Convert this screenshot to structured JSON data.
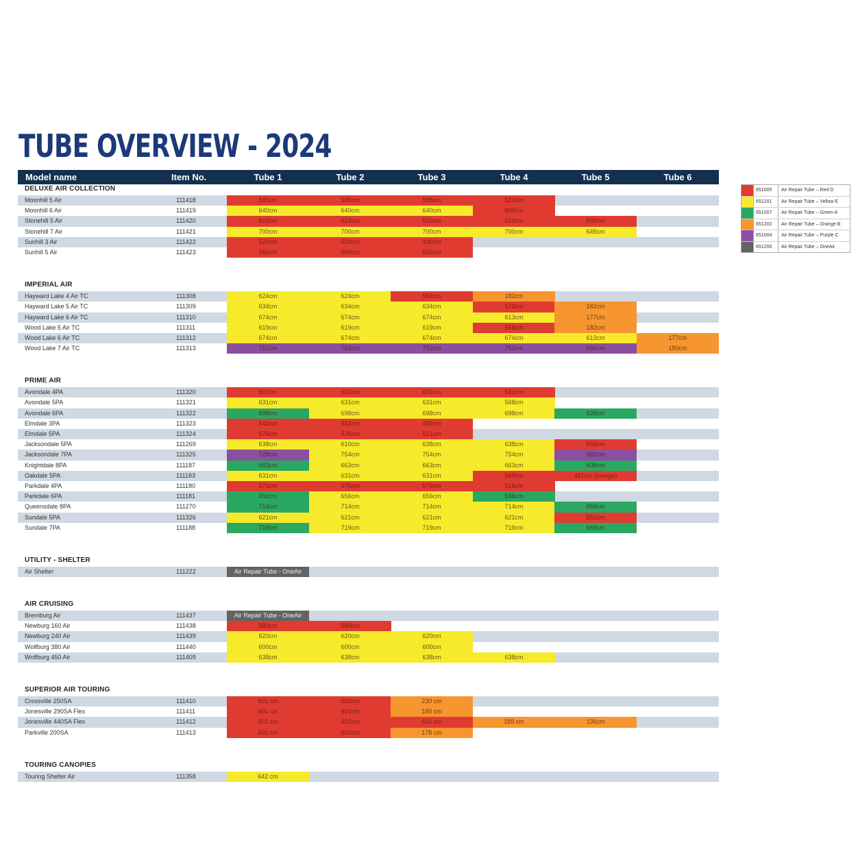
{
  "title": "TUBE OVERVIEW - 2024",
  "colors": {
    "red": "#e03b31",
    "yellow": "#f6ea2b",
    "green": "#2aa862",
    "orange": "#f7952f",
    "purple": "#8c4ea0",
    "oneair": "#636363"
  },
  "header": {
    "model": "Model name",
    "item": "Item No.",
    "tubes": [
      "Tube 1",
      "Tube 2",
      "Tube 3",
      "Tube 4",
      "Tube 5",
      "Tube 6"
    ]
  },
  "legend": [
    {
      "color": "red",
      "code": "651005",
      "label": "Air Repair Tube – Red D"
    },
    {
      "color": "yellow",
      "code": "651201",
      "label": "Air Repair Tube – Yellow E"
    },
    {
      "color": "green",
      "code": "651007",
      "label": "Air Repair Tube – Green A"
    },
    {
      "color": "orange",
      "code": "651202",
      "label": "Air Repair Tube – Orange B"
    },
    {
      "color": "purple",
      "code": "651004",
      "label": "Air Repair Tube – Purple C"
    },
    {
      "color": "oneair",
      "code": "651200",
      "label": "Air Repair Tube – OneAir"
    }
  ],
  "sections": [
    {
      "title": "DELUXE AIR COLLECTION",
      "rows": [
        {
          "name": "Moonhill 5 Air",
          "item": "111418",
          "tubes": [
            [
              "585cm",
              "red"
            ],
            [
              "585cm",
              "red"
            ],
            [
              "585cm",
              "red"
            ],
            [
              "520cm",
              "red"
            ]
          ]
        },
        {
          "name": "Moonhill 6 Air",
          "item": "111419",
          "tubes": [
            [
              "640cm",
              "yellow"
            ],
            [
              "640cm",
              "yellow"
            ],
            [
              "640cm",
              "yellow"
            ],
            [
              "600cm",
              "red"
            ]
          ]
        },
        {
          "name": "Stonehill 5 Air",
          "item": "111420",
          "tubes": [
            [
              "610cm",
              "red"
            ],
            [
              "610cm",
              "red"
            ],
            [
              "610cm",
              "red"
            ],
            [
              "610cm",
              "red"
            ],
            [
              "550cm",
              "red"
            ]
          ]
        },
        {
          "name": "Stonehill 7 Air",
          "item": "111421",
          "tubes": [
            [
              "700cm",
              "yellow"
            ],
            [
              "700cm",
              "yellow"
            ],
            [
              "700cm",
              "yellow"
            ],
            [
              "700cm",
              "yellow"
            ],
            [
              "645cm",
              "yellow"
            ]
          ]
        },
        {
          "name": "Sunhill 3 Air",
          "item": "111422",
          "tubes": [
            [
              "520cm",
              "red"
            ],
            [
              "520cm",
              "red"
            ],
            [
              "490cm",
              "red"
            ]
          ]
        },
        {
          "name": "Sunhill 5 Air",
          "item": "111423",
          "tubes": [
            [
              "560cm",
              "red"
            ],
            [
              "560cm",
              "red"
            ],
            [
              "510cm",
              "red"
            ]
          ]
        }
      ]
    },
    {
      "title": "IMPERIAL AIR",
      "rows": [
        {
          "name": "Hayward Lake 4 Air TC",
          "item": "111308",
          "tubes": [
            [
              "624cm",
              "yellow"
            ],
            [
              "624cm",
              "yellow"
            ],
            [
              "563cm",
              "red"
            ],
            [
              "182cm",
              "orange"
            ]
          ]
        },
        {
          "name": "Hayward Lake 5 Air TC",
          "item": "111309",
          "tubes": [
            [
              "634cm",
              "yellow"
            ],
            [
              "634cm",
              "yellow"
            ],
            [
              "634cm",
              "yellow"
            ],
            [
              "573cm",
              "red"
            ],
            [
              "182cm",
              "orange"
            ]
          ]
        },
        {
          "name": "Hayward Lake 6 Air TC",
          "item": "111310",
          "tubes": [
            [
              "674cm",
              "yellow"
            ],
            [
              "674cm",
              "yellow"
            ],
            [
              "674cm",
              "yellow"
            ],
            [
              "613cm",
              "yellow"
            ],
            [
              "177cm",
              "orange"
            ]
          ]
        },
        {
          "name": "Wood Lake 5 Air TC",
          "item": "111311",
          "tubes": [
            [
              "619cm",
              "yellow"
            ],
            [
              "619cm",
              "yellow"
            ],
            [
              "619cm",
              "yellow"
            ],
            [
              "558cm",
              "red"
            ],
            [
              "182cm",
              "orange"
            ]
          ]
        },
        {
          "name": "Wood Lake 6 Air TC",
          "item": "111312",
          "tubes": [
            [
              "674cm",
              "yellow"
            ],
            [
              "674cm",
              "yellow"
            ],
            [
              "674cm",
              "yellow"
            ],
            [
              "674cm",
              "yellow"
            ],
            [
              "613cm",
              "yellow"
            ],
            [
              "177cm",
              "orange"
            ]
          ]
        },
        {
          "name": "Wood Lake 7 Air TC",
          "item": "111313",
          "tubes": [
            [
              "752cm",
              "purple"
            ],
            [
              "752cm",
              "purple"
            ],
            [
              "752cm",
              "purple"
            ],
            [
              "752cm",
              "purple"
            ],
            [
              "680cm",
              "purple"
            ],
            [
              "180cm",
              "orange"
            ]
          ]
        }
      ]
    },
    {
      "title": "PRIME AIR",
      "rows": [
        {
          "name": "Avondale 4PA",
          "item": "111320",
          "tubes": [
            [
              "601cm",
              "red"
            ],
            [
              "601cm",
              "red"
            ],
            [
              "601cm",
              "red"
            ],
            [
              "531cm",
              "red"
            ]
          ]
        },
        {
          "name": "Avondale 5PA",
          "item": "111321",
          "tubes": [
            [
              "631cm",
              "yellow"
            ],
            [
              "631cm",
              "yellow"
            ],
            [
              "631cm",
              "yellow"
            ],
            [
              "568cm",
              "yellow"
            ]
          ]
        },
        {
          "name": "Avondale 6PA",
          "item": "111322",
          "tubes": [
            [
              "698cm",
              "green"
            ],
            [
              "698cm",
              "yellow"
            ],
            [
              "698cm",
              "yellow"
            ],
            [
              "698cm",
              "yellow"
            ],
            [
              "628cm",
              "green"
            ]
          ]
        },
        {
          "name": "Elmdale 3PA",
          "item": "111323",
          "tubes": [
            [
              "542cm",
              "red"
            ],
            [
              "542cm",
              "red"
            ],
            [
              "489cm",
              "red"
            ]
          ]
        },
        {
          "name": "Elmdale 5PA",
          "item": "111324",
          "tubes": [
            [
              "576cm",
              "red"
            ],
            [
              "576cm",
              "red"
            ],
            [
              "521cm",
              "red"
            ]
          ]
        },
        {
          "name": "Jacksondale 5PA",
          "item": "111269",
          "tubes": [
            [
              "638cm",
              "yellow"
            ],
            [
              "610cm",
              "yellow"
            ],
            [
              "638cm",
              "yellow"
            ],
            [
              "638cm",
              "yellow"
            ],
            [
              "569cm",
              "red"
            ]
          ]
        },
        {
          "name": "Jacksondale 7PA",
          "item": "111325",
          "tubes": [
            [
              "728cm",
              "purple"
            ],
            [
              "754cm",
              "yellow"
            ],
            [
              "754cm",
              "yellow"
            ],
            [
              "754cm",
              "yellow"
            ],
            [
              "682cm",
              "purple"
            ]
          ]
        },
        {
          "name": "Knightdale 8PA",
          "item": "111187",
          "tubes": [
            [
              "663cm",
              "green"
            ],
            [
              "663cm",
              "yellow"
            ],
            [
              "663cm",
              "yellow"
            ],
            [
              "663cm",
              "yellow"
            ],
            [
              "608cm",
              "green"
            ]
          ]
        },
        {
          "name": "Oakdale 5PA",
          "item": "111183",
          "tubes": [
            [
              "631cm",
              "yellow"
            ],
            [
              "631cm",
              "yellow"
            ],
            [
              "631cm",
              "yellow"
            ],
            [
              "569cm",
              "red"
            ],
            [
              "481cm (lounge)",
              "red"
            ]
          ]
        },
        {
          "name": "Parkdale 4PA",
          "item": "111180",
          "tubes": [
            [
              "576cm",
              "red"
            ],
            [
              "576cm",
              "red"
            ],
            [
              "576cm",
              "red"
            ],
            [
              "516cm",
              "red"
            ]
          ]
        },
        {
          "name": "Parkdale 6PA",
          "item": "111181",
          "tubes": [
            [
              "656cm",
              "green"
            ],
            [
              "656cm",
              "yellow"
            ],
            [
              "656cm",
              "yellow"
            ],
            [
              "598cm",
              "green"
            ]
          ]
        },
        {
          "name": "Queensdale 8PA",
          "item": "111270",
          "tubes": [
            [
              "714cm",
              "green"
            ],
            [
              "714cm",
              "yellow"
            ],
            [
              "714cm",
              "yellow"
            ],
            [
              "714cm",
              "yellow"
            ],
            [
              "658cm",
              "green"
            ]
          ]
        },
        {
          "name": "Sundale 5PA",
          "item": "111326",
          "tubes": [
            [
              "621cm",
              "yellow"
            ],
            [
              "621cm",
              "yellow"
            ],
            [
              "621cm",
              "yellow"
            ],
            [
              "621cm",
              "yellow"
            ],
            [
              "551cm",
              "red"
            ]
          ]
        },
        {
          "name": "Sundale 7PA",
          "item": "111188",
          "tubes": [
            [
              "719cm",
              "green"
            ],
            [
              "719cm",
              "yellow"
            ],
            [
              "719cm",
              "yellow"
            ],
            [
              "719cm",
              "yellow"
            ],
            [
              "668cm",
              "green"
            ]
          ]
        }
      ]
    },
    {
      "title": "UTILITY - SHELTER",
      "rows": [
        {
          "name": "Air Shelter",
          "item": "111222",
          "tubes": [
            [
              "Air Repair Tube - OneAir",
              "oneair"
            ]
          ]
        }
      ]
    },
    {
      "title": "AIR CRUISING",
      "rows": [
        {
          "name": "Bremburg Air",
          "item": "111437",
          "tubes": [
            [
              "Air Repair Tube - OneAir",
              "oneair"
            ]
          ]
        },
        {
          "name": "Newburg 160 Air",
          "item": "111438",
          "tubes": [
            [
              "580cm",
              "red"
            ],
            [
              "580cm",
              "red"
            ]
          ]
        },
        {
          "name": "Newburg 240 Air",
          "item": "111439",
          "tubes": [
            [
              "620cm",
              "yellow"
            ],
            [
              "620cm",
              "yellow"
            ],
            [
              "620cm",
              "yellow"
            ]
          ]
        },
        {
          "name": "Wolfburg 380 Air",
          "item": "111440",
          "tubes": [
            [
              "600cm",
              "yellow"
            ],
            [
              "600cm",
              "yellow"
            ],
            [
              "600cm",
              "yellow"
            ]
          ]
        },
        {
          "name": "Wolfburg 450 Air",
          "item": "111409",
          "tubes": [
            [
              "638cm",
              "yellow"
            ],
            [
              "638cm",
              "yellow"
            ],
            [
              "638cm",
              "yellow"
            ],
            [
              "638cm",
              "yellow"
            ]
          ]
        }
      ]
    },
    {
      "title": "SUPERIOR AIR TOURING",
      "rows": [
        {
          "name": "Crossville 250SA",
          "item": "111410",
          "tubes": [
            [
              "601 cm",
              "red"
            ],
            [
              "601cm",
              "red"
            ],
            [
              "230 cm",
              "orange"
            ]
          ]
        },
        {
          "name": "Jonesville 290SA Flex",
          "item": "111411",
          "tubes": [
            [
              "601 cm",
              "red"
            ],
            [
              "601cm",
              "red"
            ],
            [
              "180 cm",
              "orange"
            ]
          ]
        },
        {
          "name": "Jonesville 440SA Flex",
          "item": "111412",
          "tubes": [
            [
              "601 cm",
              "red"
            ],
            [
              "601cm",
              "red"
            ],
            [
              "601 cm",
              "red"
            ],
            [
              "189 cm",
              "orange"
            ],
            [
              "136cm",
              "orange"
            ]
          ]
        },
        {
          "name": "Parkville 200SA",
          "item": "111413",
          "tubes": [
            [
              "601 cm",
              "red"
            ],
            [
              "601cm",
              "red"
            ],
            [
              "178 cm",
              "orange"
            ]
          ]
        }
      ]
    },
    {
      "title": "TOURING CANOPIES",
      "rows": [
        {
          "name": "Touring Shelter Air",
          "item": "111358",
          "tubes": [
            [
              "642 cm",
              "yellow"
            ]
          ]
        }
      ]
    }
  ]
}
